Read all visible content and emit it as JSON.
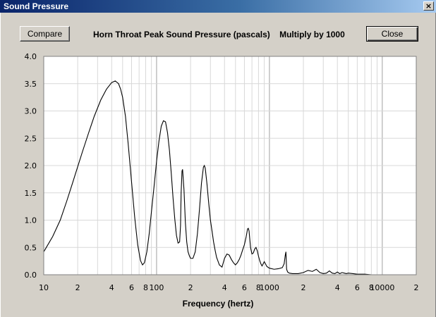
{
  "window": {
    "title": "Sound Pressure",
    "close_glyph": "×",
    "close_icon": "close-icon"
  },
  "toolbar": {
    "compare_label": "Compare",
    "close_label": "Close"
  },
  "chart_header": {
    "title": "Horn Throat Peak Sound Pressure (pascals)    Multiply by 1000"
  },
  "chart_data": {
    "type": "line",
    "title": "Horn Throat Peak Sound Pressure (pascals)    Multiply by 1000",
    "xlabel": "Frequency (hertz)",
    "ylabel": "",
    "xscale": "log",
    "xlim": [
      10,
      20000
    ],
    "ylim": [
      0,
      4.0
    ],
    "grid": true,
    "legend": "none",
    "line_color": "#000000",
    "y_ticks": [
      "0.0",
      "0.5",
      "1.0",
      "1.5",
      "2.0",
      "2.5",
      "3.0",
      "3.5",
      "4.0"
    ],
    "x_tick_labels": [
      {
        "value": 10,
        "label": "10"
      },
      {
        "value": 20,
        "label": "2"
      },
      {
        "value": 40,
        "label": "4"
      },
      {
        "value": 60,
        "label": "6"
      },
      {
        "value": 80,
        "label": "8"
      },
      {
        "value": 100,
        "label": "100"
      },
      {
        "value": 200,
        "label": "2"
      },
      {
        "value": 400,
        "label": "4"
      },
      {
        "value": 600,
        "label": "6"
      },
      {
        "value": 800,
        "label": "8"
      },
      {
        "value": 1000,
        "label": "1000"
      },
      {
        "value": 2000,
        "label": "2"
      },
      {
        "value": 4000,
        "label": "4"
      },
      {
        "value": 6000,
        "label": "6"
      },
      {
        "value": 8000,
        "label": "8"
      },
      {
        "value": 10000,
        "label": "10000"
      },
      {
        "value": 20000,
        "label": "2"
      }
    ],
    "series": [
      {
        "x": [
          10,
          12,
          14,
          16,
          18,
          20,
          22,
          25,
          28,
          32,
          36,
          40,
          43,
          46,
          48,
          50,
          53,
          56,
          60,
          64,
          68,
          72,
          75,
          78,
          82,
          86,
          90,
          95,
          100,
          105,
          110,
          115,
          120,
          125,
          130,
          135,
          140,
          145,
          150,
          155,
          160,
          163,
          165,
          168,
          170,
          175,
          180,
          185,
          190,
          195,
          200,
          210,
          220,
          230,
          240,
          250,
          260,
          265,
          270,
          280,
          290,
          300,
          310,
          320,
          330,
          340,
          350,
          360,
          380,
          400,
          420,
          440,
          460,
          480,
          500,
          520,
          540,
          560,
          580,
          600,
          620,
          640,
          650,
          660,
          680,
          700,
          720,
          740,
          760,
          780,
          800,
          820,
          840,
          860,
          880,
          900,
          950,
          1000,
          1100,
          1200,
          1300,
          1350,
          1380,
          1400,
          1420,
          1450,
          1500,
          1600,
          1800,
          2000,
          2200,
          2400,
          2600,
          2800,
          3000,
          3200,
          3400,
          3600,
          3800,
          4000,
          4200,
          4400,
          4600,
          4800,
          5000,
          5500,
          6000,
          7000,
          8000
        ],
        "y": [
          0.42,
          0.7,
          1.0,
          1.35,
          1.68,
          1.98,
          2.25,
          2.6,
          2.9,
          3.2,
          3.4,
          3.52,
          3.55,
          3.5,
          3.4,
          3.25,
          2.9,
          2.4,
          1.7,
          1.05,
          0.55,
          0.26,
          0.18,
          0.22,
          0.42,
          0.75,
          1.15,
          1.62,
          2.08,
          2.45,
          2.72,
          2.82,
          2.8,
          2.6,
          2.28,
          1.85,
          1.4,
          1.02,
          0.72,
          0.58,
          0.6,
          0.9,
          1.5,
          1.9,
          1.93,
          1.55,
          0.95,
          0.6,
          0.42,
          0.35,
          0.3,
          0.3,
          0.42,
          0.75,
          1.2,
          1.68,
          1.97,
          2.0,
          1.95,
          1.65,
          1.3,
          1.0,
          0.8,
          0.6,
          0.45,
          0.32,
          0.25,
          0.18,
          0.14,
          0.3,
          0.38,
          0.36,
          0.28,
          0.22,
          0.18,
          0.22,
          0.28,
          0.36,
          0.46,
          0.55,
          0.68,
          0.84,
          0.85,
          0.8,
          0.5,
          0.38,
          0.4,
          0.47,
          0.5,
          0.44,
          0.34,
          0.26,
          0.2,
          0.16,
          0.2,
          0.24,
          0.15,
          0.12,
          0.1,
          0.11,
          0.13,
          0.2,
          0.35,
          0.42,
          0.1,
          0.05,
          0.03,
          0.02,
          0.02,
          0.04,
          0.08,
          0.06,
          0.1,
          0.04,
          0.02,
          0.03,
          0.07,
          0.03,
          0.02,
          0.05,
          0.02,
          0.04,
          0.03,
          0.02,
          0.03,
          0.02,
          0.01,
          0.01,
          0.0
        ]
      }
    ]
  }
}
